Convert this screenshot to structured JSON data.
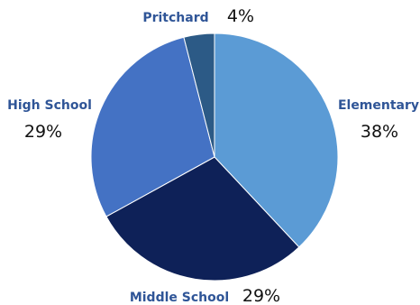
{
  "chart_data": {
    "type": "pie",
    "slices": [
      {
        "label": "Elementary",
        "value": 38,
        "value_label": "38%",
        "color": "#5b9bd5"
      },
      {
        "label": "Middle School",
        "value": 29,
        "value_label": "29%",
        "color": "#0e2158"
      },
      {
        "label": "High School",
        "value": 29,
        "value_label": "29%",
        "color": "#4472c4"
      },
      {
        "label": "Pritchard",
        "value": 4,
        "value_label": "4%",
        "color": "#2c5a86"
      }
    ],
    "label_color": "#2f5597",
    "start_angle": "12 o'clock",
    "direction": "clockwise"
  }
}
